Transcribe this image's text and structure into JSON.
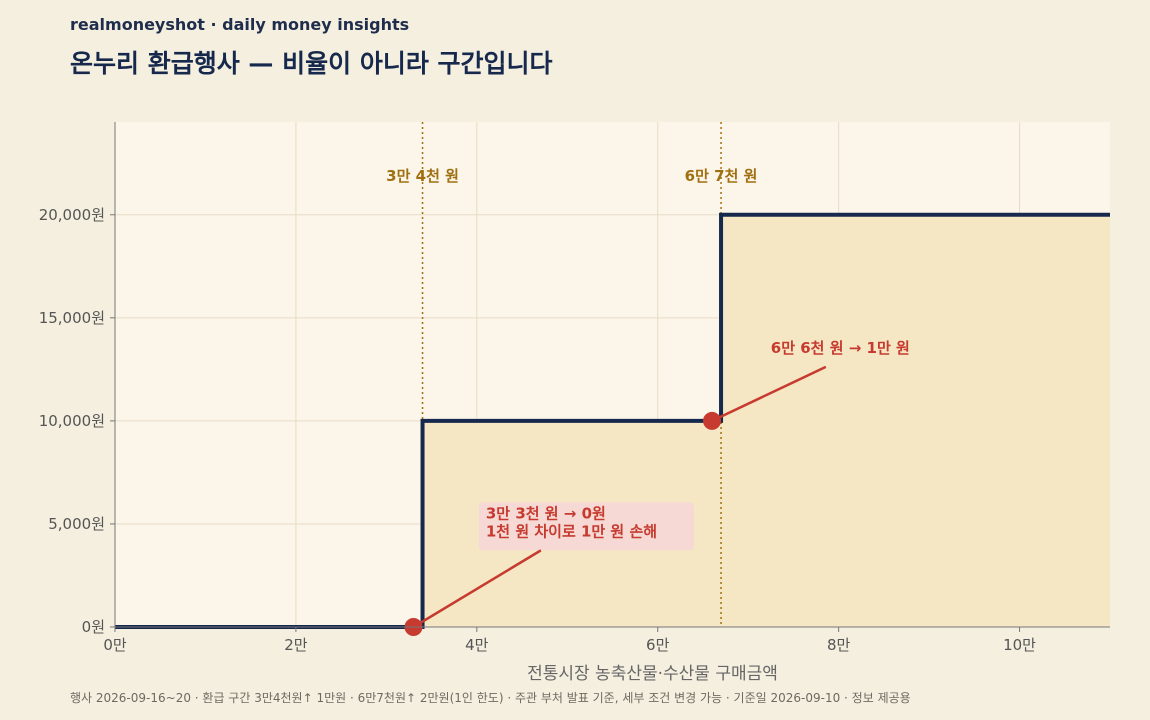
{
  "header": {
    "brand": "realmoneyshot · daily money insights",
    "title": "온누리 환급행사 — 비율이 아니라 구간입니다"
  },
  "footnote": "행사 2026-09-16~20 · 환급 구간 3만4천원↑ 1만원 · 6만7천원↑ 2만원(1인 한도) · 주관 부처 발표 기준, 세부 조건 변경 가능 · 기준일 2026-09-10 · 정보 제공용",
  "colors": {
    "background": "#f5efe0",
    "plot_background": "#fbf5ea",
    "step_line": "#16294d",
    "fill": "#f5e6c4",
    "threshold_line": "#a07010",
    "annotation": "#c63a2f",
    "annotation_box": "#f6d9d4"
  },
  "chart_data": {
    "type": "line",
    "xlabel": "전통시장 농축산물·수산물 구매금액",
    "ylabel": "",
    "xlim": [
      0,
      110000
    ],
    "ylim": [
      0,
      24500
    ],
    "grid": true,
    "x_ticks": [
      {
        "value": 0,
        "label": "0만"
      },
      {
        "value": 20000,
        "label": "2만"
      },
      {
        "value": 40000,
        "label": "4만"
      },
      {
        "value": 60000,
        "label": "6만"
      },
      {
        "value": 80000,
        "label": "8만"
      },
      {
        "value": 100000,
        "label": "10만"
      }
    ],
    "y_ticks": [
      {
        "value": 0,
        "label": "0원"
      },
      {
        "value": 5000,
        "label": "5,000원"
      },
      {
        "value": 10000,
        "label": "10,000원"
      },
      {
        "value": 15000,
        "label": "15,000원"
      },
      {
        "value": 20000,
        "label": "20,000원"
      }
    ],
    "series": [
      {
        "step": true,
        "points": [
          [
            0,
            0
          ],
          [
            34000,
            0
          ],
          [
            34000,
            10000
          ],
          [
            67000,
            10000
          ],
          [
            67000,
            20000
          ],
          [
            110000,
            20000
          ]
        ]
      }
    ],
    "thresholds": [
      {
        "x": 34000,
        "label": "3만 4천 원"
      },
      {
        "x": 67000,
        "label": "6만 7천 원"
      }
    ],
    "annotations": [
      {
        "point": [
          33000,
          0
        ],
        "text_at": [
          41000,
          4300
        ],
        "lines": [
          "3만 3천 원 → 0원",
          "1천 원 차이로 1만 원 손해"
        ],
        "boxed": true
      },
      {
        "point": [
          66000,
          10000
        ],
        "text_at": [
          72500,
          13200
        ],
        "lines": [
          "6만 6천 원 → 1만 원"
        ],
        "boxed": false
      }
    ]
  }
}
